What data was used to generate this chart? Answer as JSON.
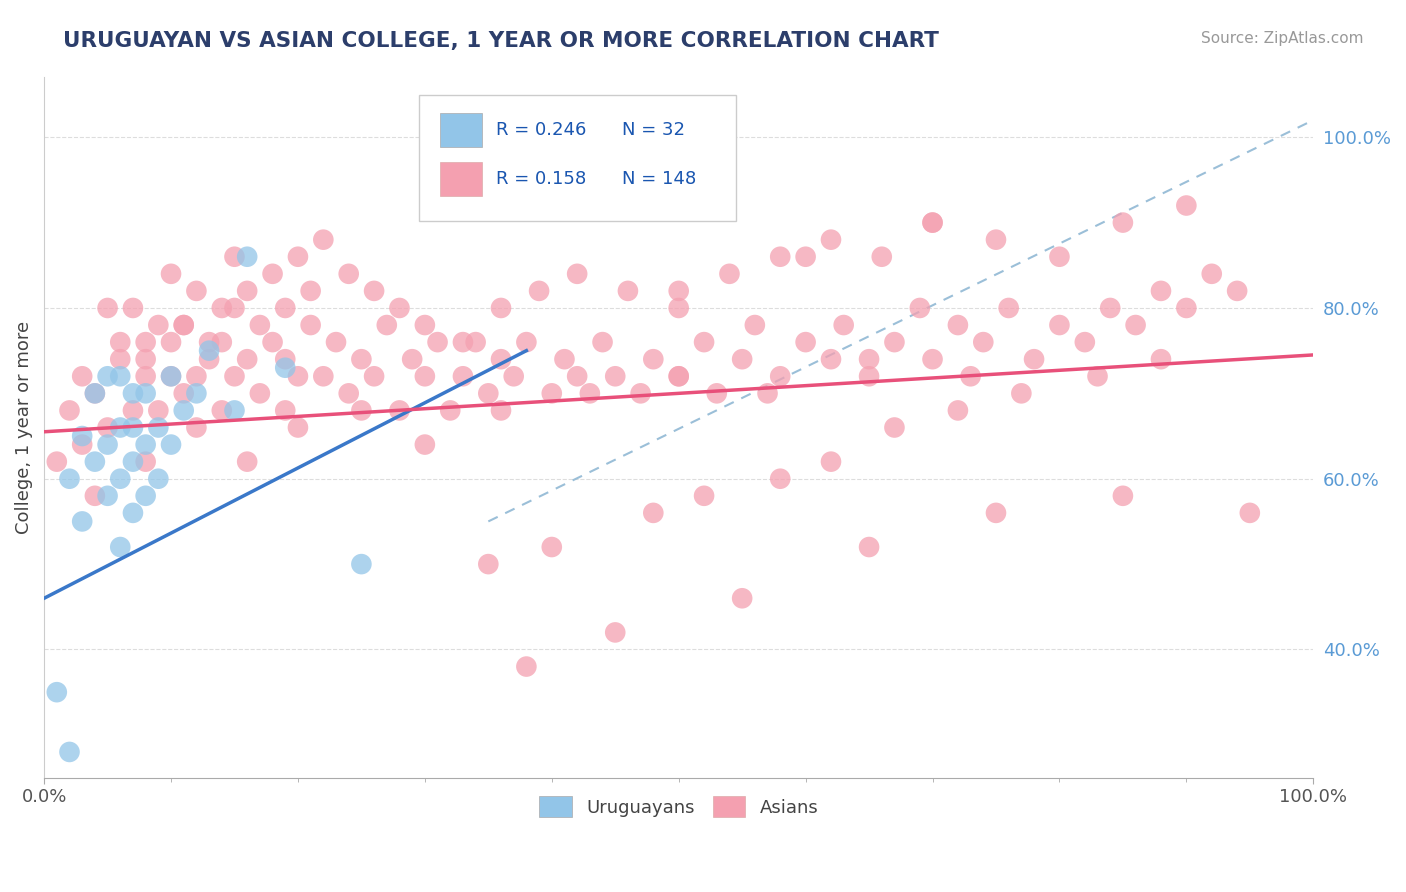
{
  "title": "URUGUAYAN VS ASIAN COLLEGE, 1 YEAR OR MORE CORRELATION CHART",
  "source": "Source: ZipAtlas.com",
  "ylabel": "College, 1 year or more",
  "legend_blue_r": "0.246",
  "legend_blue_n": "32",
  "legend_pink_r": "0.158",
  "legend_pink_n": "148",
  "legend_label1": "Uruguayans",
  "legend_label2": "Asians",
  "blue_dot_color": "#92c5e8",
  "pink_dot_color": "#f4a0b0",
  "blue_line_color": "#3a78c9",
  "pink_line_color": "#e8507a",
  "dashed_line_color": "#9bbfd8",
  "title_color": "#2c3e6b",
  "source_color": "#999999",
  "legend_r_color": "#1a56b0",
  "legend_n_color": "#1a56b0",
  "right_tick_color": "#5b9bd5",
  "grid_color": "#dddddd",
  "xlim": [
    0.0,
    1.0
  ],
  "ylim": [
    0.25,
    1.07
  ],
  "yticks": [
    0.4,
    0.6,
    0.8,
    1.0
  ],
  "ytick_labels": [
    "40.0%",
    "60.0%",
    "80.0%",
    "100.0%"
  ],
  "xtick_labels": [
    "0.0%",
    "100.0%"
  ],
  "blue_line_x": [
    0.0,
    0.38
  ],
  "blue_line_y": [
    0.46,
    0.75
  ],
  "pink_line_x": [
    0.0,
    1.0
  ],
  "pink_line_y": [
    0.655,
    0.745
  ],
  "dash_line_x": [
    0.35,
    1.0
  ],
  "dash_line_y": [
    0.55,
    1.02
  ],
  "uruguayan_x": [
    0.01,
    0.02,
    0.02,
    0.03,
    0.03,
    0.04,
    0.04,
    0.05,
    0.05,
    0.05,
    0.06,
    0.06,
    0.06,
    0.06,
    0.07,
    0.07,
    0.07,
    0.07,
    0.08,
    0.08,
    0.08,
    0.09,
    0.09,
    0.1,
    0.1,
    0.11,
    0.12,
    0.13,
    0.15,
    0.16,
    0.19,
    0.25
  ],
  "uruguayan_y": [
    0.35,
    0.28,
    0.6,
    0.55,
    0.65,
    0.62,
    0.7,
    0.58,
    0.64,
    0.72,
    0.52,
    0.6,
    0.66,
    0.72,
    0.56,
    0.62,
    0.66,
    0.7,
    0.58,
    0.64,
    0.7,
    0.6,
    0.66,
    0.64,
    0.72,
    0.68,
    0.7,
    0.75,
    0.68,
    0.86,
    0.73,
    0.5
  ],
  "asian_x": [
    0.01,
    0.02,
    0.03,
    0.03,
    0.04,
    0.05,
    0.06,
    0.07,
    0.08,
    0.08,
    0.09,
    0.1,
    0.1,
    0.11,
    0.11,
    0.12,
    0.13,
    0.14,
    0.14,
    0.15,
    0.15,
    0.16,
    0.17,
    0.18,
    0.19,
    0.19,
    0.2,
    0.21,
    0.22,
    0.23,
    0.24,
    0.25,
    0.26,
    0.27,
    0.28,
    0.29,
    0.3,
    0.31,
    0.32,
    0.33,
    0.34,
    0.35,
    0.36,
    0.37,
    0.38,
    0.4,
    0.41,
    0.42,
    0.44,
    0.45,
    0.47,
    0.48,
    0.5,
    0.52,
    0.53,
    0.55,
    0.56,
    0.58,
    0.6,
    0.62,
    0.63,
    0.65,
    0.67,
    0.69,
    0.7,
    0.72,
    0.74,
    0.76,
    0.78,
    0.8,
    0.82,
    0.84,
    0.86,
    0.88,
    0.9,
    0.92,
    0.94,
    0.95,
    0.05,
    0.06,
    0.07,
    0.08,
    0.09,
    0.1,
    0.11,
    0.12,
    0.13,
    0.14,
    0.15,
    0.16,
    0.17,
    0.18,
    0.19,
    0.2,
    0.21,
    0.22,
    0.24,
    0.26,
    0.28,
    0.3,
    0.33,
    0.36,
    0.39,
    0.42,
    0.46,
    0.5,
    0.54,
    0.58,
    0.62,
    0.66,
    0.7,
    0.75,
    0.8,
    0.85,
    0.9,
    0.5,
    0.6,
    0.7,
    0.04,
    0.08,
    0.12,
    0.16,
    0.2,
    0.25,
    0.3,
    0.36,
    0.43,
    0.5,
    0.57,
    0.65,
    0.73,
    0.55,
    0.45,
    0.38,
    0.65,
    0.75,
    0.85,
    0.35,
    0.4,
    0.48,
    0.52,
    0.58,
    0.62,
    0.67,
    0.72,
    0.77,
    0.83,
    0.88
  ],
  "asian_y": [
    0.62,
    0.68,
    0.64,
    0.72,
    0.7,
    0.66,
    0.74,
    0.68,
    0.72,
    0.76,
    0.68,
    0.72,
    0.76,
    0.7,
    0.78,
    0.72,
    0.74,
    0.68,
    0.76,
    0.72,
    0.8,
    0.74,
    0.7,
    0.76,
    0.68,
    0.74,
    0.72,
    0.78,
    0.72,
    0.76,
    0.7,
    0.74,
    0.72,
    0.78,
    0.68,
    0.74,
    0.72,
    0.76,
    0.68,
    0.72,
    0.76,
    0.7,
    0.74,
    0.72,
    0.76,
    0.7,
    0.74,
    0.72,
    0.76,
    0.72,
    0.7,
    0.74,
    0.72,
    0.76,
    0.7,
    0.74,
    0.78,
    0.72,
    0.76,
    0.74,
    0.78,
    0.72,
    0.76,
    0.8,
    0.74,
    0.78,
    0.76,
    0.8,
    0.74,
    0.78,
    0.76,
    0.8,
    0.78,
    0.82,
    0.8,
    0.84,
    0.82,
    0.56,
    0.8,
    0.76,
    0.8,
    0.74,
    0.78,
    0.84,
    0.78,
    0.82,
    0.76,
    0.8,
    0.86,
    0.82,
    0.78,
    0.84,
    0.8,
    0.86,
    0.82,
    0.88,
    0.84,
    0.82,
    0.8,
    0.78,
    0.76,
    0.8,
    0.82,
    0.84,
    0.82,
    0.8,
    0.84,
    0.86,
    0.88,
    0.86,
    0.9,
    0.88,
    0.86,
    0.9,
    0.92,
    0.82,
    0.86,
    0.9,
    0.58,
    0.62,
    0.66,
    0.62,
    0.66,
    0.68,
    0.64,
    0.68,
    0.7,
    0.72,
    0.7,
    0.74,
    0.72,
    0.46,
    0.42,
    0.38,
    0.52,
    0.56,
    0.58,
    0.5,
    0.52,
    0.56,
    0.58,
    0.6,
    0.62,
    0.66,
    0.68,
    0.7,
    0.72,
    0.74
  ]
}
